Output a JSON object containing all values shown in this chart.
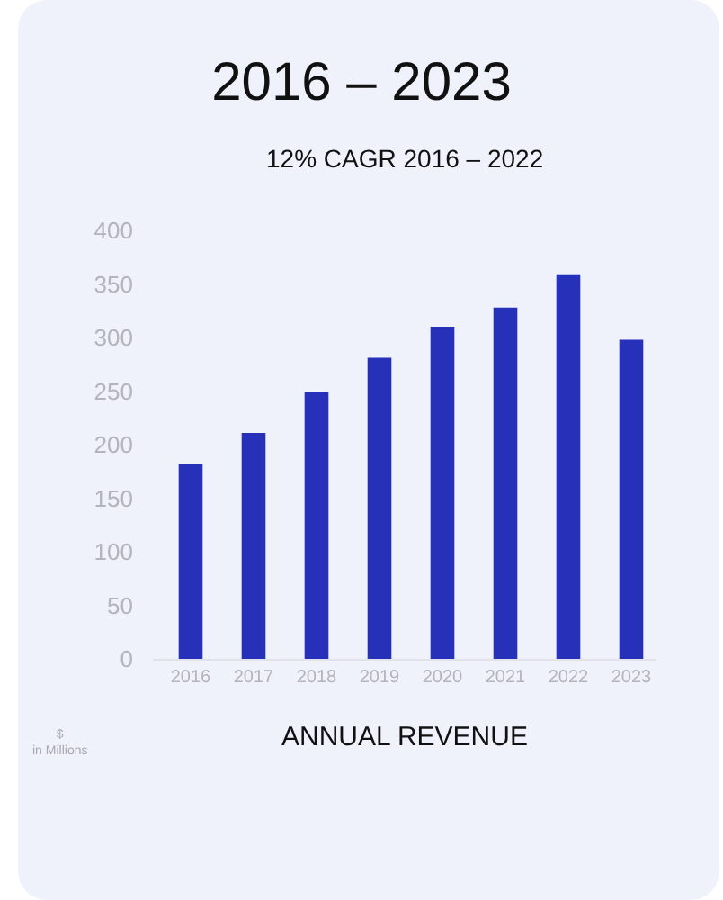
{
  "chart_data": {
    "type": "bar",
    "title": "2016 – 2023",
    "subtitle": "12% CAGR 2016 – 2022",
    "xlabel": "ANNUAL REVENUE",
    "ylabel": "$ in Millions",
    "categories": [
      "2016",
      "2017",
      "2018",
      "2019",
      "2020",
      "2021",
      "2022",
      "2023"
    ],
    "values": [
      182,
      211,
      249,
      281,
      310,
      328,
      359,
      298
    ],
    "color": "#2630b8",
    "ylim": [
      0,
      400
    ],
    "yticks": [
      0,
      50,
      100,
      150,
      200,
      250,
      300,
      350,
      400
    ],
    "grid": false,
    "legend": false
  }
}
